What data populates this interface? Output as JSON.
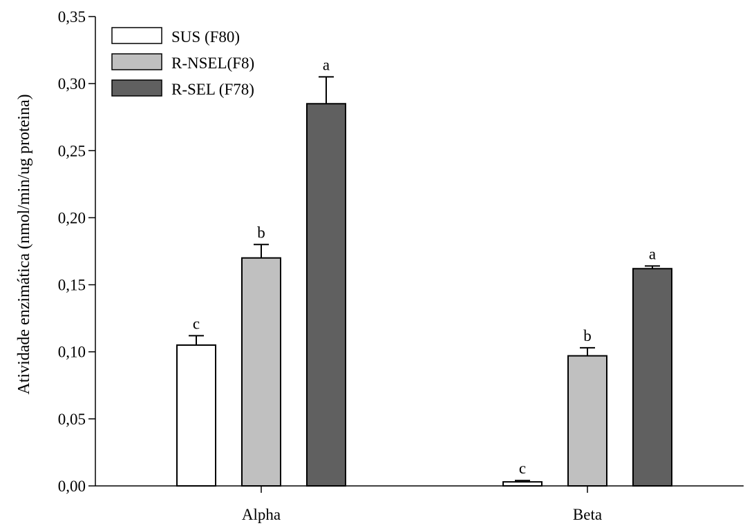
{
  "chart_data": {
    "type": "bar",
    "title": "",
    "xlabel": "",
    "ylabel": "Atividade enzimática (nmol/min/ug proteina)",
    "ylim": [
      0,
      0.35
    ],
    "yticks": [
      "0,00",
      "0,05",
      "0,10",
      "0,15",
      "0,20",
      "0,25",
      "0,30",
      "0,35"
    ],
    "categories": [
      "Alpha",
      "Beta"
    ],
    "series": [
      {
        "name": "SUS (F80)",
        "color": "#ffffff",
        "values": [
          0.105,
          0.003
        ],
        "errors": [
          0.007,
          0.001
        ],
        "labels": [
          "c",
          "c"
        ]
      },
      {
        "name": "R-NSEL(F8)",
        "color": "#c0c0c0",
        "values": [
          0.17,
          0.097
        ],
        "errors": [
          0.01,
          0.006
        ],
        "labels": [
          "b",
          "b"
        ]
      },
      {
        "name": "R-SEL (F78)",
        "color": "#606060",
        "values": [
          0.285,
          0.162
        ],
        "errors": [
          0.02,
          0.002
        ],
        "labels": [
          "a",
          "a"
        ]
      }
    ],
    "legend_position": "top-left",
    "grid": false
  }
}
